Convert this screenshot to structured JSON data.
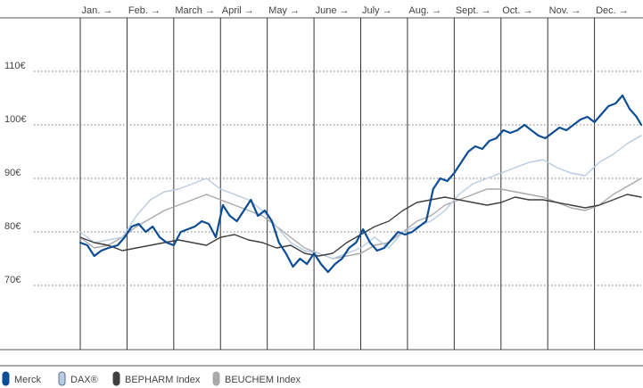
{
  "chart_data": {
    "type": "line",
    "months": [
      "Jan. →",
      "Feb. →",
      "March →",
      "April →",
      "May →",
      "June →",
      "July →",
      "Aug. →",
      "Sept. →",
      "Oct. →",
      "Nov. →",
      "Dec. →"
    ],
    "y_ticks": [
      {
        "value": 70,
        "label": "70€"
      },
      {
        "value": 80,
        "label": "80€"
      },
      {
        "value": 90,
        "label": "90€"
      },
      {
        "value": 100,
        "label": "100€"
      },
      {
        "value": 110,
        "label": "110€"
      }
    ],
    "ylim": [
      58,
      120
    ],
    "x_unit": "month index (0 = start of Jan., 12 = end of Dec.)",
    "xlim": [
      0,
      12
    ],
    "grid": "vertical month separators, dotted horizontal gridlines",
    "legend_position": "bottom-left",
    "series": [
      {
        "name": "Merck",
        "color": "#0d4d94",
        "x": [
          0,
          0.15,
          0.3,
          0.45,
          0.6,
          0.8,
          0.95,
          1.1,
          1.25,
          1.4,
          1.55,
          1.7,
          1.85,
          2.0,
          2.15,
          2.3,
          2.45,
          2.6,
          2.75,
          2.9,
          3.05,
          3.2,
          3.35,
          3.5,
          3.65,
          3.8,
          3.95,
          4.1,
          4.25,
          4.4,
          4.55,
          4.7,
          4.85,
          5.0,
          5.15,
          5.3,
          5.45,
          5.6,
          5.75,
          5.9,
          6.05,
          6.2,
          6.35,
          6.5,
          6.65,
          6.8,
          6.95,
          7.1,
          7.25,
          7.4,
          7.55,
          7.7,
          7.85,
          8.0,
          8.15,
          8.3,
          8.45,
          8.6,
          8.75,
          8.9,
          9.05,
          9.2,
          9.35,
          9.5,
          9.65,
          9.8,
          9.95,
          10.1,
          10.25,
          10.4,
          10.55,
          10.7,
          10.85,
          11.0,
          11.15,
          11.3,
          11.45,
          11.6,
          11.75,
          11.9,
          12.0
        ],
        "y": [
          78,
          77.5,
          75.5,
          76.5,
          77,
          77.5,
          79,
          81,
          81.5,
          80,
          81,
          79,
          78,
          77.5,
          80,
          80.5,
          81,
          82,
          81.5,
          79,
          85,
          83,
          82,
          84,
          86,
          83,
          84,
          82,
          78,
          76,
          73.5,
          75,
          74,
          76,
          74,
          72.5,
          74,
          75,
          77,
          78,
          80.5,
          78,
          76.5,
          77,
          78.5,
          80,
          79.5,
          80,
          81,
          82,
          88,
          90,
          89.5,
          91,
          93,
          95,
          96,
          95.5,
          97,
          97.5,
          99,
          98.5,
          99,
          100,
          99,
          98,
          97.5,
          98.5,
          99.5,
          99,
          100,
          101,
          101.5,
          100.5,
          102,
          103.5,
          104,
          105.5,
          103,
          101.5,
          100
        ]
      },
      {
        "name": "DAX®",
        "color": "#b9cbe1",
        "x": [
          0,
          0.3,
          0.6,
          0.9,
          1.2,
          1.5,
          1.8,
          2.1,
          2.4,
          2.7,
          3.0,
          3.3,
          3.6,
          3.9,
          4.2,
          4.5,
          4.8,
          5.1,
          5.4,
          5.7,
          6.0,
          6.3,
          6.6,
          6.9,
          7.2,
          7.5,
          7.8,
          8.1,
          8.4,
          8.7,
          9.0,
          9.3,
          9.6,
          9.9,
          10.2,
          10.5,
          10.8,
          11.1,
          11.4,
          11.7,
          12.0
        ],
        "y": [
          80,
          78,
          78.5,
          79,
          83,
          86,
          87.5,
          88,
          89,
          90,
          88,
          87,
          86,
          84,
          81,
          78,
          76.5,
          76,
          75,
          76,
          77,
          79,
          77,
          80,
          81,
          82,
          84,
          87,
          89,
          90,
          91,
          92,
          93,
          93.5,
          92,
          91,
          90.5,
          93,
          94.5,
          96.5,
          98
        ]
      },
      {
        "name": "BEPHARM Index",
        "color": "#3f3f3f",
        "x": [
          0,
          0.3,
          0.6,
          0.9,
          1.2,
          1.5,
          1.8,
          2.1,
          2.4,
          2.7,
          3.0,
          3.3,
          3.6,
          3.9,
          4.2,
          4.5,
          4.8,
          5.1,
          5.4,
          5.7,
          6.0,
          6.3,
          6.6,
          6.9,
          7.2,
          7.5,
          7.8,
          8.1,
          8.4,
          8.7,
          9.0,
          9.3,
          9.6,
          9.9,
          10.2,
          10.5,
          10.8,
          11.1,
          11.4,
          11.7,
          12.0
        ],
        "y": [
          79,
          78,
          77.5,
          76.5,
          77,
          77.5,
          78,
          78.5,
          78,
          77.5,
          79,
          79.5,
          78.5,
          78,
          77,
          77.5,
          76,
          75.5,
          76,
          78,
          79.5,
          81,
          82,
          84,
          85.5,
          86,
          86.5,
          86,
          85.5,
          85,
          85.5,
          86.5,
          86,
          86,
          85.5,
          85,
          84.5,
          85,
          86,
          87,
          86.5
        ]
      },
      {
        "name": "BEUCHEM Index",
        "color": "#a9a9a9",
        "x": [
          0,
          0.3,
          0.6,
          0.9,
          1.2,
          1.5,
          1.8,
          2.1,
          2.4,
          2.7,
          3.0,
          3.3,
          3.6,
          3.9,
          4.2,
          4.5,
          4.8,
          5.1,
          5.4,
          5.7,
          6.0,
          6.3,
          6.6,
          6.9,
          7.2,
          7.5,
          7.8,
          8.1,
          8.4,
          8.7,
          9.0,
          9.3,
          9.6,
          9.9,
          10.2,
          10.5,
          10.8,
          11.1,
          11.4,
          11.7,
          12.0
        ],
        "y": [
          79,
          77,
          77.5,
          79,
          81,
          82.5,
          84,
          85,
          86,
          87,
          86,
          85,
          84,
          83,
          81,
          79,
          77,
          76,
          75,
          75.5,
          76,
          77.5,
          78,
          80,
          82,
          83,
          85,
          86,
          87,
          88,
          88,
          87.5,
          87,
          86.5,
          85.5,
          84.5,
          84,
          85,
          87,
          88.5,
          90
        ]
      }
    ]
  }
}
